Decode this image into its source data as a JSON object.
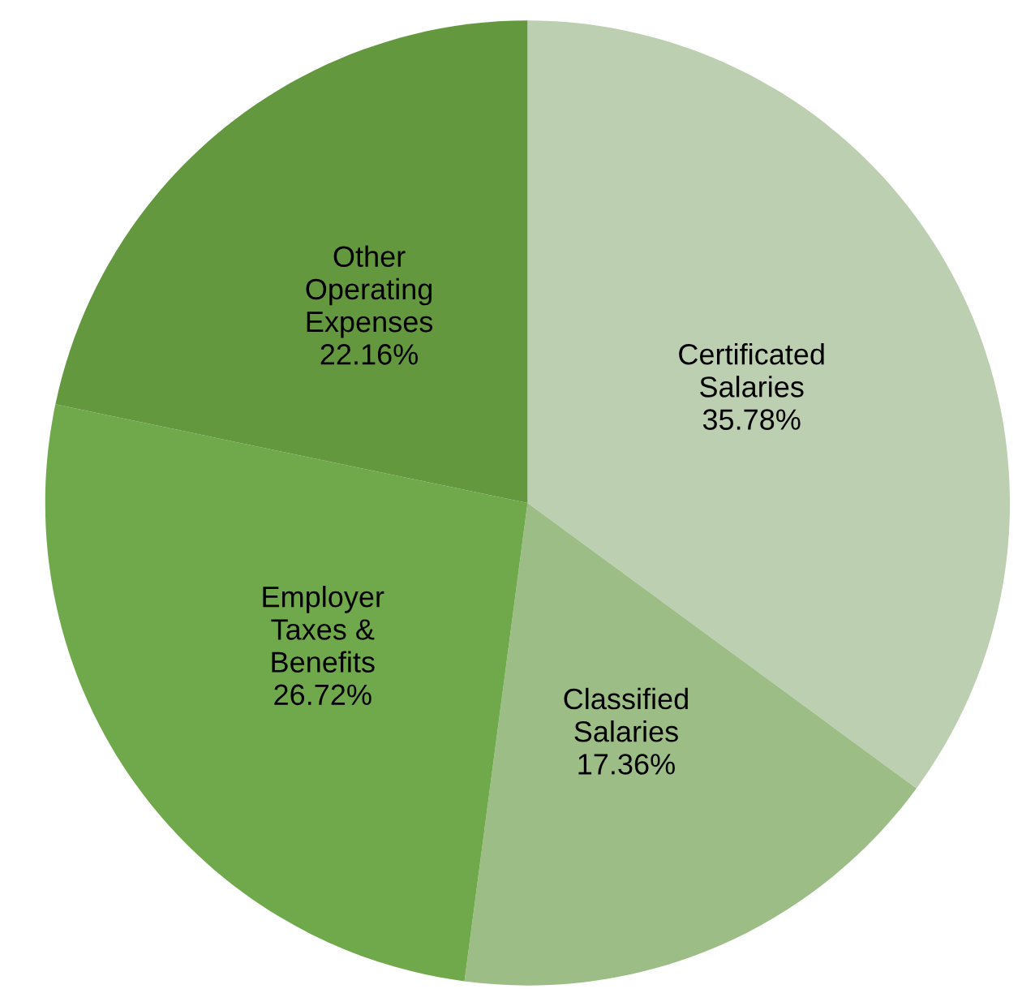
{
  "chart_data": {
    "type": "pie",
    "categories": [
      "Certificated Salaries",
      "Classified Salaries",
      "Employer Taxes & Benefits",
      "Other Operating Expenses"
    ],
    "values": [
      35.78,
      17.36,
      26.72,
      22.16
    ],
    "value_labels": [
      "35.78%",
      "17.36%",
      "26.72%",
      "22.16%"
    ],
    "colors": [
      "#bccfb1",
      "#9cbd86",
      "#70a94b",
      "#64983f"
    ],
    "legend": false
  }
}
